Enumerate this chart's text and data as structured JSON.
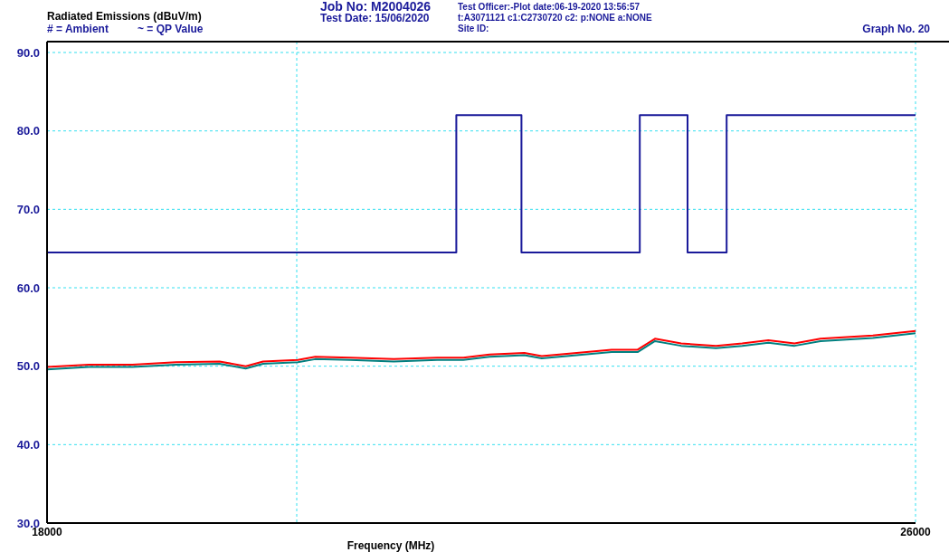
{
  "chart_data": {
    "type": "line",
    "title": "Radiated Emissions (dBuV/m)",
    "xlabel": "Frequency (MHz)",
    "annotations": [
      "# = Ambient",
      "~ = QP Value",
      "Job No: M2004026",
      "Test Date: 15/06/2020",
      "Test Officer:-Plot date:06-19-2020 13:56:57",
      "t:A3071121 c1:C2730720  c2: p:NONE a:NONE",
      "Site ID:",
      "Graph No.  20"
    ],
    "xlim": [
      18000,
      26000
    ],
    "xticks": [
      18000,
      {
        "value": 20300,
        "label": null
      },
      26000
    ],
    "ylim": [
      30,
      90
    ],
    "yticks": [
      {
        "value": 30,
        "label": "30.0"
      },
      {
        "value": 40,
        "label": "40.0"
      },
      {
        "value": 50,
        "label": "50.0"
      },
      {
        "value": 60,
        "label": "60.0"
      },
      {
        "value": 70,
        "label": "70.0"
      },
      {
        "value": 80,
        "label": "80.0"
      },
      {
        "value": 90,
        "label": "90.0"
      }
    ],
    "grid": true,
    "marker": "none",
    "line_style": "solid",
    "series": [
      {
        "color": "#ff0000",
        "x": [
          18000,
          18385,
          18786,
          19188,
          19589,
          19830,
          19990,
          20311,
          20471,
          20792,
          21194,
          21595,
          21835,
          22076,
          22397,
          22557,
          22879,
          23200,
          23440,
          23600,
          23841,
          24162,
          24403,
          24644,
          24885,
          25125,
          25366,
          25607,
          26000
        ],
        "values": [
          49.9,
          50.2,
          50.2,
          50.5,
          50.6,
          50.0,
          50.6,
          50.8,
          51.2,
          51.1,
          50.9,
          51.1,
          51.1,
          51.5,
          51.7,
          51.3,
          51.7,
          52.1,
          52.1,
          53.5,
          52.9,
          52.6,
          52.9,
          53.3,
          52.9,
          53.5,
          53.7,
          53.9,
          54.5
        ]
      },
      {
        "color": "#008080",
        "x": [
          18000,
          18385,
          18786,
          19188,
          19589,
          19830,
          19990,
          20311,
          20471,
          20792,
          21194,
          21595,
          21835,
          22076,
          22397,
          22557,
          22879,
          23200,
          23440,
          23600,
          23841,
          24162,
          24403,
          24644,
          24885,
          25125,
          25366,
          25607,
          26000
        ],
        "values": [
          49.6,
          49.9,
          49.9,
          50.2,
          50.3,
          49.7,
          50.3,
          50.5,
          50.9,
          50.8,
          50.6,
          50.8,
          50.8,
          51.2,
          51.4,
          51.0,
          51.4,
          51.8,
          51.8,
          53.2,
          52.6,
          52.3,
          52.6,
          53.0,
          52.6,
          53.2,
          53.4,
          53.6,
          54.2
        ]
      },
      {
        "color": "#1a1a9a",
        "x": [
          18000,
          21770,
          21770,
          22370,
          22370,
          23460,
          23460,
          23900,
          23900,
          24260,
          24260,
          26000
        ],
        "values": [
          64.5,
          64.5,
          82.0,
          82.0,
          64.5,
          64.5,
          82.0,
          82.0,
          64.5,
          64.5,
          82.0,
          82.0
        ]
      }
    ]
  }
}
